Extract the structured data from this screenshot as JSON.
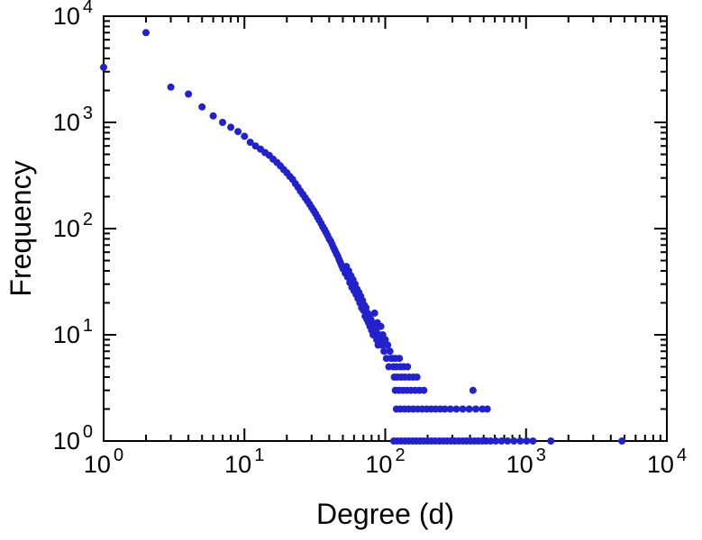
{
  "chart_data": {
    "type": "scatter",
    "title": "",
    "xlabel": "Degree (d)",
    "ylabel": "Frequency",
    "x_scale": "log",
    "y_scale": "log",
    "xlim": [
      1,
      10000
    ],
    "ylim": [
      1,
      10000
    ],
    "grid": false,
    "legend": "none",
    "tick_base": "10",
    "x_tick_exponents": [
      0,
      1,
      2,
      3,
      4
    ],
    "y_tick_exponents": [
      0,
      1,
      2,
      3,
      4
    ],
    "colors": {
      "points": "#2222cc",
      "axes": "#000000",
      "text": "#000000",
      "background": "#ffffff"
    },
    "marker": {
      "shape": "circle",
      "radius_px": 4
    },
    "points": [
      [
        1,
        3300
      ],
      [
        2,
        7000
      ],
      [
        3,
        2150
      ],
      [
        4,
        1850
      ],
      [
        5,
        1400
      ],
      [
        6,
        1150
      ],
      [
        7,
        1000
      ],
      [
        8,
        900
      ],
      [
        9,
        820
      ],
      [
        10,
        740
      ],
      [
        11,
        650
      ],
      [
        12,
        600
      ],
      [
        13,
        560
      ],
      [
        14,
        520
      ],
      [
        15,
        490
      ],
      [
        16,
        450
      ],
      [
        17,
        420
      ],
      [
        18,
        390
      ],
      [
        19,
        360
      ],
      [
        20,
        335
      ],
      [
        21,
        310
      ],
      [
        22,
        290
      ],
      [
        23,
        265
      ],
      [
        24,
        245
      ],
      [
        25,
        225
      ],
      [
        26,
        210
      ],
      [
        27,
        195
      ],
      [
        28,
        182
      ],
      [
        29,
        170
      ],
      [
        30,
        158
      ],
      [
        31,
        148
      ],
      [
        32,
        138
      ],
      [
        33,
        128
      ],
      [
        34,
        120
      ],
      [
        35,
        112
      ],
      [
        36,
        104
      ],
      [
        37,
        98
      ],
      [
        38,
        92
      ],
      [
        39,
        86
      ],
      [
        40,
        80
      ],
      [
        41,
        76
      ],
      [
        42,
        71
      ],
      [
        43,
        66
      ],
      [
        44,
        62
      ],
      [
        45,
        58
      ],
      [
        46,
        55
      ],
      [
        47,
        51
      ],
      [
        48,
        48
      ],
      [
        49,
        45
      ],
      [
        50,
        42
      ],
      [
        52,
        38
      ],
      [
        53,
        44
      ],
      [
        54,
        35
      ],
      [
        55,
        40
      ],
      [
        56,
        31
      ],
      [
        57,
        36
      ],
      [
        58,
        28
      ],
      [
        59,
        33
      ],
      [
        60,
        26
      ],
      [
        61,
        30
      ],
      [
        62,
        24
      ],
      [
        63,
        27
      ],
      [
        64,
        22
      ],
      [
        65,
        25
      ],
      [
        66,
        20
      ],
      [
        67,
        23
      ],
      [
        68,
        18
      ],
      [
        69,
        21
      ],
      [
        70,
        17
      ],
      [
        71,
        19
      ],
      [
        72,
        15
      ],
      [
        73,
        18
      ],
      [
        74,
        14
      ],
      [
        75,
        16
      ],
      [
        76,
        13
      ],
      [
        77,
        15
      ],
      [
        78,
        12
      ],
      [
        79,
        14
      ],
      [
        80,
        11
      ],
      [
        81,
        13
      ],
      [
        82,
        10
      ],
      [
        83,
        12
      ],
      [
        84,
        16
      ],
      [
        85,
        10
      ],
      [
        86,
        11
      ],
      [
        87,
        9
      ],
      [
        88,
        13
      ],
      [
        89,
        8
      ],
      [
        90,
        10
      ],
      [
        92,
        9
      ],
      [
        93,
        12
      ],
      [
        95,
        8
      ],
      [
        96,
        10
      ],
      [
        98,
        7
      ],
      [
        100,
        9
      ],
      [
        102,
        6
      ],
      [
        104,
        8
      ],
      [
        106,
        5
      ],
      [
        108,
        7
      ],
      [
        110,
        6
      ],
      [
        112,
        6
      ],
      [
        118,
        6
      ],
      [
        126,
        6
      ],
      [
        114,
        5
      ],
      [
        120,
        5
      ],
      [
        128,
        5
      ],
      [
        135,
        5
      ],
      [
        144,
        5
      ],
      [
        116,
        4
      ],
      [
        122,
        4
      ],
      [
        130,
        4
      ],
      [
        138,
        4
      ],
      [
        148,
        4
      ],
      [
        158,
        4
      ],
      [
        168,
        4
      ],
      [
        118,
        3
      ],
      [
        125,
        3
      ],
      [
        133,
        3
      ],
      [
        142,
        3
      ],
      [
        152,
        3
      ],
      [
        163,
        3
      ],
      [
        175,
        3
      ],
      [
        188,
        3
      ],
      [
        420,
        3
      ],
      [
        120,
        2
      ],
      [
        128,
        2
      ],
      [
        137,
        2
      ],
      [
        147,
        2
      ],
      [
        158,
        2
      ],
      [
        170,
        2
      ],
      [
        183,
        2
      ],
      [
        197,
        2
      ],
      [
        212,
        2
      ],
      [
        228,
        2
      ],
      [
        246,
        2
      ],
      [
        265,
        2
      ],
      [
        290,
        2
      ],
      [
        320,
        2
      ],
      [
        355,
        2
      ],
      [
        395,
        2
      ],
      [
        440,
        2
      ],
      [
        490,
        2
      ],
      [
        530,
        2
      ],
      [
        115,
        1
      ],
      [
        122,
        1
      ],
      [
        130,
        1
      ],
      [
        138,
        1
      ],
      [
        147,
        1
      ],
      [
        156,
        1
      ],
      [
        166,
        1
      ],
      [
        177,
        1
      ],
      [
        188,
        1
      ],
      [
        200,
        1
      ],
      [
        213,
        1
      ],
      [
        227,
        1
      ],
      [
        242,
        1
      ],
      [
        258,
        1
      ],
      [
        275,
        1
      ],
      [
        293,
        1
      ],
      [
        312,
        1
      ],
      [
        333,
        1
      ],
      [
        355,
        1
      ],
      [
        378,
        1
      ],
      [
        403,
        1
      ],
      [
        430,
        1
      ],
      [
        458,
        1
      ],
      [
        488,
        1
      ],
      [
        520,
        1
      ],
      [
        560,
        1
      ],
      [
        610,
        1
      ],
      [
        670,
        1
      ],
      [
        740,
        1
      ],
      [
        820,
        1
      ],
      [
        910,
        1
      ],
      [
        1010,
        1
      ],
      [
        1120,
        1
      ],
      [
        1500,
        1
      ],
      [
        4800,
        1
      ]
    ]
  }
}
